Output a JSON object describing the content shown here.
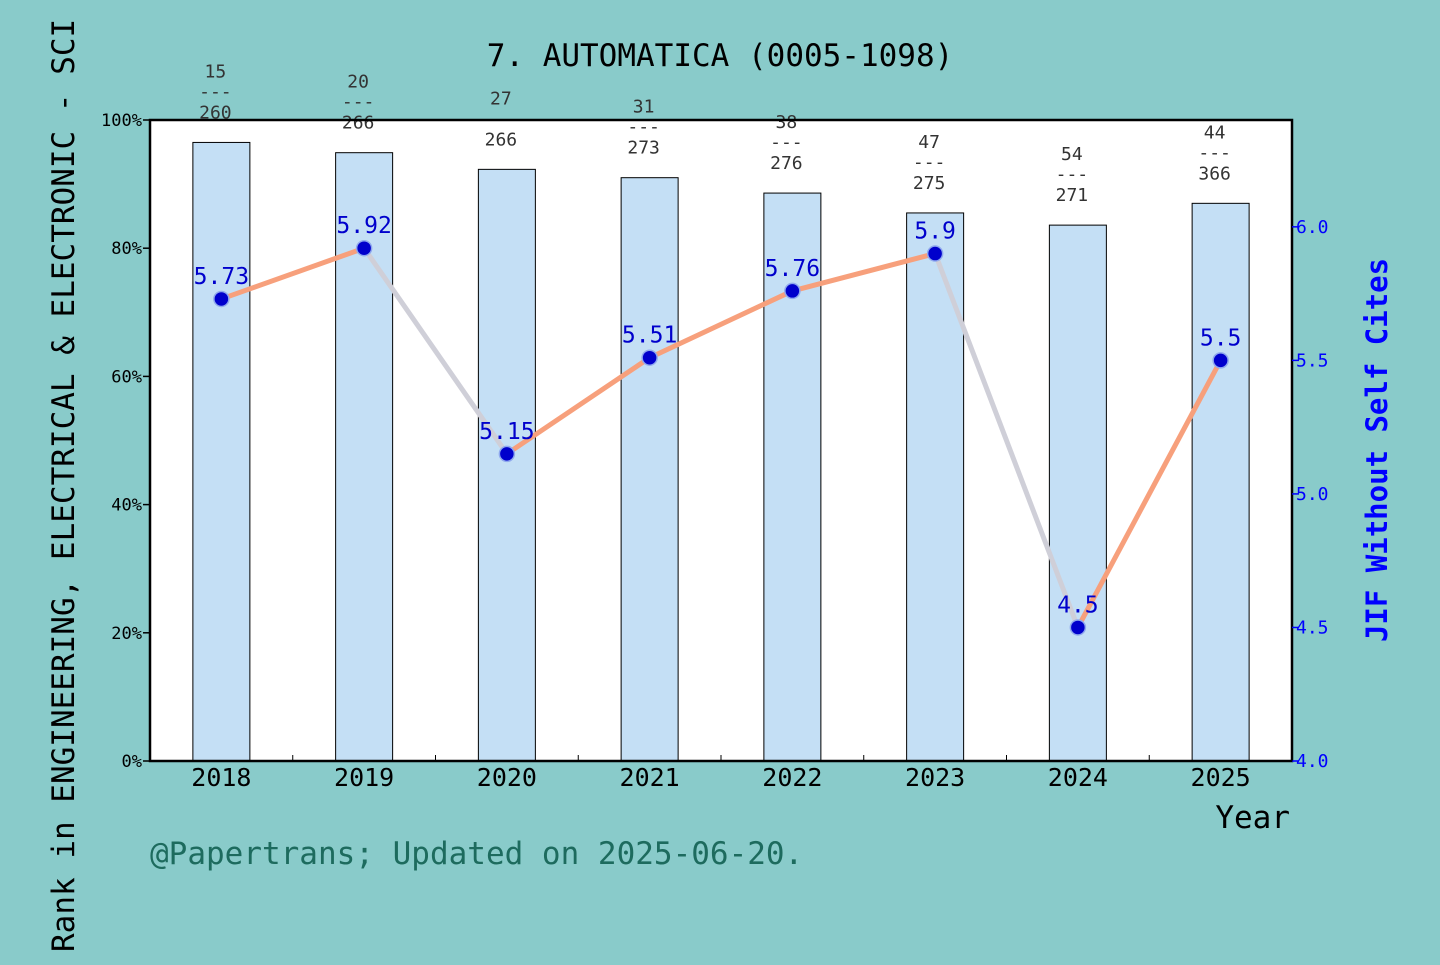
{
  "chart_data": {
    "type": "bar",
    "title": "7. AUTOMATICA (0005-1098)",
    "xlabel": "Year",
    "ylabel": "Rank in ENGINEERING, ELECTRICAL & ELECTRONIC - SCI",
    "y2label": "JIF Without Self Cites",
    "categories": [
      "2018",
      "2019",
      "2020",
      "2021",
      "2022",
      "2023",
      "2024",
      "2025"
    ],
    "ylim": [
      0,
      100
    ],
    "yticks": [
      "0%",
      "20%",
      "40%",
      "60%",
      "80%",
      "100%"
    ],
    "y2lim": [
      4.0,
      6.4
    ],
    "y2ticks": [
      "4.0",
      "4.5",
      "5.0",
      "5.5",
      "6.0"
    ],
    "series": [
      {
        "kind": "bar",
        "values": [
          96.5,
          94.9,
          92.3,
          91.0,
          88.6,
          85.5,
          83.6,
          87.0
        ],
        "rank_labels": [
          {
            "rank": "15",
            "sep": "---",
            "total": "260"
          },
          {
            "rank": "20",
            "sep": "---",
            "total": "266"
          },
          {
            "rank": "27",
            "sep": "---",
            "total": "266"
          },
          {
            "rank": "31",
            "sep": "---",
            "total": "273"
          },
          {
            "rank": "38",
            "sep": "---",
            "total": "276"
          },
          {
            "rank": "47",
            "sep": "---",
            "total": "275"
          },
          {
            "rank": "54",
            "sep": "---",
            "total": "271"
          },
          {
            "rank": "44",
            "sep": "---",
            "total": "366"
          }
        ]
      },
      {
        "kind": "line",
        "axis": "right",
        "values": [
          5.73,
          5.92,
          5.15,
          5.51,
          5.76,
          5.9,
          4.5,
          5.5
        ],
        "labels": [
          "5.73",
          "5.92",
          "5.15",
          "5.51",
          "5.76",
          "5.9",
          "4.5",
          "5.5"
        ]
      }
    ],
    "grid": false,
    "colors": {
      "background": "#89cbca",
      "plot_area": "#ffffff",
      "bar_fill": "#c4dff5",
      "line_up": "#f7a07c",
      "line_down": "#cfcfd8",
      "marker": "#0000cc",
      "right_axis": "#0000ff",
      "rank_label": "#333333",
      "footer": "#1d6b5e"
    }
  },
  "footer": "@Papertrans; Updated on 2025-06-20."
}
